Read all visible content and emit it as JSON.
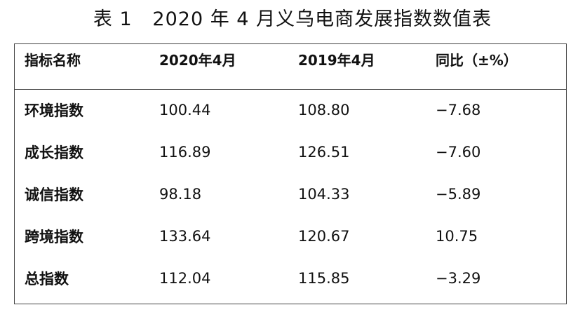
{
  "caption": "表 1   2020 年 4 月义乌电商发展指数数值表",
  "table": {
    "headers": [
      "指标名称",
      "2020年4月",
      "2019年4月",
      "同比（±%）"
    ],
    "rows": [
      [
        "环境指数",
        "100.44",
        "108.80",
        "−7.68"
      ],
      [
        "成长指数",
        "116.89",
        "126.51",
        "−7.60"
      ],
      [
        "诚信指数",
        "98.18",
        "104.33",
        "−5.89"
      ],
      [
        "跨境指数",
        "133.64",
        "120.67",
        "10.75"
      ],
      [
        "总指数",
        "112.04",
        "115.85",
        "−3.29"
      ]
    ]
  }
}
